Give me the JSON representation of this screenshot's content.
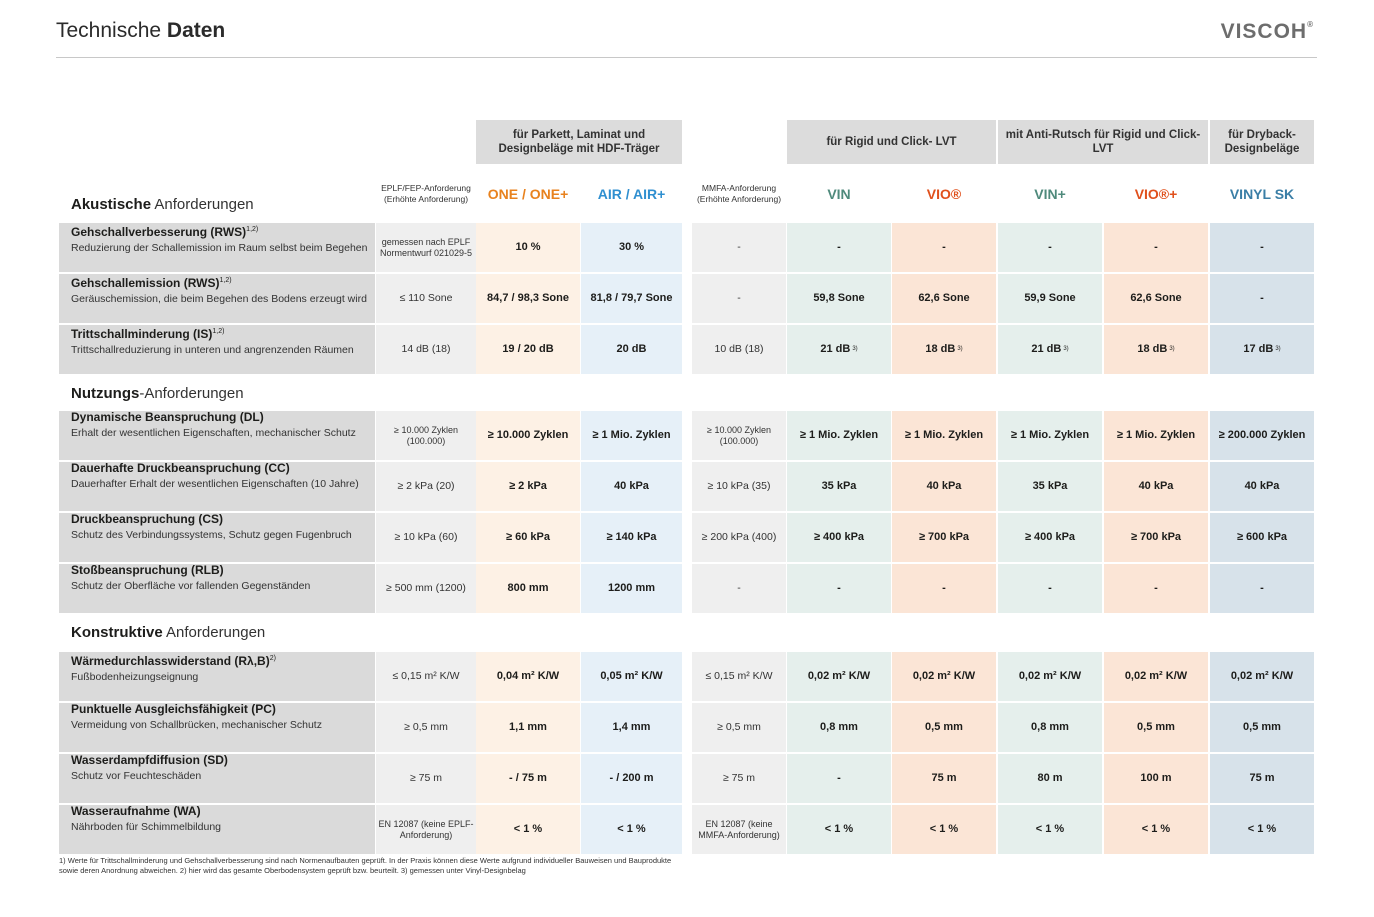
{
  "header": {
    "title_light": "Technische",
    "title_bold": "Daten",
    "logo": "VISCOH",
    "logo_mark": "®"
  },
  "groups": {
    "g1": "für Parkett, Laminat und Designbeläge mit HDF-Träger",
    "g2": "für Rigid und Click- LVT",
    "g3": "mit Anti-Rutsch für Rigid und Click-LVT",
    "g4": "für Dryback-Designbeläge"
  },
  "columns": {
    "req1": "EPLF/FEP-Anforderung (Erhöhte Anforderung)",
    "one": "ONE / ONE+",
    "air": "AIR / AIR+",
    "req2": "MMFA-Anforderung (Erhöhte Anforderung)",
    "vin": "VIN",
    "vio": "VIO®",
    "vinp": "VIN+",
    "viop": "VIO®+",
    "sk": "VINYL SK"
  },
  "colors": {
    "one": "#e8821e",
    "air": "#2f8fd0",
    "vin": "#4f8a7c",
    "vio": "#e0501c",
    "vinp": "#4f8a7c",
    "viop": "#e0501c",
    "sk": "#3a7ea6"
  },
  "sections": {
    "s1_bold": "Akustische",
    "s1_rest": " Anforderungen",
    "s2_bold": "Nutzungs",
    "s2_rest": "-Anforderungen",
    "s3_bold": "Konstruktive",
    "s3_rest": " Anforderungen"
  },
  "rows": [
    {
      "title": "Gehschallverbesserung (RWS)",
      "sup": "1,2)",
      "sub": "Reduzierung der Schallemission im Raum selbst beim Begehen",
      "req1": "gemessen nach EPLF Normentwurf 021029-5",
      "one": "10 %",
      "air": "30 %",
      "req2": "-",
      "vin": "-",
      "vio": "-",
      "vinp": "-",
      "viop": "-",
      "sk": "-"
    },
    {
      "title": "Gehschallemission (RWS)",
      "sup": "1,2)",
      "sub": "Geräuschemission, die beim Begehen des Bodens erzeugt wird",
      "req1": "≤ 110 Sone",
      "one": "84,7 / 98,3 Sone",
      "air": "81,8 / 79,7 Sone",
      "req2": "-",
      "vin": "59,8 Sone",
      "vio": "62,6 Sone",
      "vinp": "59,9 Sone",
      "viop": "62,6 Sone",
      "sk": "-"
    },
    {
      "title": "Trittschallminderung (IS)",
      "sup": "1,2)",
      "sub": "Trittschallreduzierung in unteren und angrenzenden Räumen",
      "req1": "14 dB (18)",
      "one": "19 / 20 dB",
      "air": "20 dB",
      "req2": "10 dB (18)",
      "vin": "21 dB",
      "vio": "18 dB",
      "vinp": "21 dB",
      "viop": "18 dB",
      "sk": "17 dB",
      "vsup": "3)"
    },
    {
      "title": "Dynamische Beanspruchung (DL)",
      "sup": "",
      "sub": "Erhalt der wesentlichen Eigenschaften, mechanischer Schutz",
      "req1": "≥ 10.000 Zyklen (100.000)",
      "one": "≥ 10.000 Zyklen",
      "air": "≥ 1 Mio. Zyklen",
      "req2": "≥ 10.000 Zyklen (100.000)",
      "vin": "≥ 1 Mio. Zyklen",
      "vio": "≥ 1 Mio. Zyklen",
      "vinp": "≥ 1 Mio. Zyklen",
      "viop": "≥ 1 Mio. Zyklen",
      "sk": "≥ 200.000 Zyklen"
    },
    {
      "title": "Dauerhafte Druckbeanspruchung (CC)",
      "sup": "",
      "sub": "Dauerhafter Erhalt der wesentlichen Eigenschaften (10 Jahre)",
      "req1": "≥ 2 kPa (20)",
      "one": "≥ 2 kPa",
      "air": "40 kPa",
      "req2": "≥ 10 kPa (35)",
      "vin": "35 kPa",
      "vio": "40 kPa",
      "vinp": "35 kPa",
      "viop": "40 kPa",
      "sk": "40 kPa"
    },
    {
      "title": "Druckbeanspruchung (CS)",
      "sup": "",
      "sub": "Schutz des Verbindungssystems, Schutz gegen Fugenbruch",
      "req1": "≥ 10 kPa (60)",
      "one": "≥ 60 kPa",
      "air": "≥ 140 kPa",
      "req2": "≥ 200 kPa (400)",
      "vin": "≥ 400 kPa",
      "vio": "≥ 700 kPa",
      "vinp": "≥ 400 kPa",
      "viop": "≥ 700 kPa",
      "sk": "≥ 600 kPa"
    },
    {
      "title": "Stoßbeanspruchung (RLB)",
      "sup": "",
      "sub": "Schutz der Oberfläche vor fallenden Gegenständen",
      "req1": "≥ 500 mm (1200)",
      "one": "800 mm",
      "air": "1200 mm",
      "req2": "-",
      "vin": "-",
      "vio": "-",
      "vinp": "-",
      "viop": "-",
      "sk": "-"
    },
    {
      "title": "Wärmedurchlasswiderstand (Rλ,B)",
      "sup": "2)",
      "sub": "Fußbodenheizungseignung",
      "req1": "≤ 0,15 m² K/W",
      "one": "0,04 m² K/W",
      "air": "0,05 m² K/W",
      "req2": "≤ 0,15 m² K/W",
      "vin": "0,02 m² K/W",
      "vio": "0,02 m² K/W",
      "vinp": "0,02 m² K/W",
      "viop": "0,02 m² K/W",
      "sk": "0,02 m² K/W"
    },
    {
      "title": "Punktuelle Ausgleichsfähigkeit (PC)",
      "sup": "",
      "sub": "Vermeidung von Schallbrücken, mechanischer Schutz",
      "req1": "≥ 0,5 mm",
      "one": "1,1 mm",
      "air": "1,4 mm",
      "req2": "≥ 0,5 mm",
      "vin": "0,8 mm",
      "vio": "0,5 mm",
      "vinp": "0,8 mm",
      "viop": "0,5 mm",
      "sk": "0,5  mm"
    },
    {
      "title": "Wasserdampfdiffusion (SD)",
      "sup": "",
      "sub": "Schutz vor Feuchteschäden",
      "req1": "≥ 75 m",
      "one": "- / 75 m",
      "air": "- / 200 m",
      "req2": "≥ 75 m",
      "vin": "-",
      "vio": "75 m",
      "vinp": "80 m",
      "viop": "100 m",
      "sk": "75 m"
    },
    {
      "title": "Wasseraufnahme  (WA)",
      "sup": "",
      "sub": "Nährboden für Schimmelbildung",
      "req1": "EN 12087 (keine EPLF-Anforderung)",
      "one": "< 1 %",
      "air": "< 1 %",
      "req2": "EN 12087 (keine MMFA-Anforderung)",
      "vin": "< 1 %",
      "vio": "< 1 %",
      "vinp": "< 1 %",
      "viop": "< 1 %",
      "sk": "< 1 %"
    }
  ],
  "footnote": "1) Werte für Trittschallminderung und Gehschallverbesserung sind nach Normenaufbauten geprüft. In der Praxis können diese Werte aufgrund individueller Bauweisen und Bauprodukte sowie deren Anordnung abweichen. 2) hier wird das gesamte Oberbodensystem geprüft bzw. beurteilt. 3) gemessen unter Vinyl-Designbelag"
}
